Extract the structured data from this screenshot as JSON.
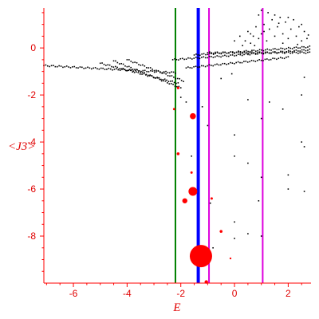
{
  "chart_data": {
    "type": "scatter",
    "title": "",
    "xlabel": "E",
    "ylabel": "<J3>",
    "xlim": [
      -7.1,
      2.85
    ],
    "ylim": [
      -10.0,
      1.7
    ],
    "xticks": [
      -6,
      -4,
      -2,
      0,
      2
    ],
    "yticks": [
      0,
      -2,
      -4,
      -6,
      -8
    ],
    "grid": false,
    "legend": "none",
    "colors": {
      "axis": "#ff0000",
      "tick_label": "#e00000",
      "points": "#000000",
      "highlight": "#ff0000",
      "line_green": "#008000",
      "line_blue": "#0000ff",
      "line_magenta": "#dd00dd"
    },
    "vertical_lines": [
      {
        "name": "green line",
        "x": -2.2,
        "color": "#008000",
        "width": 2
      },
      {
        "name": "blue line",
        "x": -1.35,
        "color": "#0000ff",
        "width": 4
      },
      {
        "name": "magenta line left",
        "x": -0.95,
        "color": "#dd00dd",
        "width": 2
      },
      {
        "name": "magenta line right",
        "x": 1.05,
        "color": "#dd00dd",
        "width": 2
      }
    ],
    "band_series": [
      {
        "x_start": -7.1,
        "x_end": -2.2,
        "y_start": -0.75,
        "y_end": -1.05
      },
      {
        "x_start": -5.0,
        "x_end": -2.1,
        "y_start": -0.65,
        "y_end": -1.5
      },
      {
        "x_start": -4.5,
        "x_end": -2.0,
        "y_start": -0.55,
        "y_end": -1.7
      },
      {
        "x_start": -4.0,
        "x_end": -1.9,
        "y_start": -0.5,
        "y_end": -1.4
      },
      {
        "x_start": -2.3,
        "x_end": 2.8,
        "y_start": -0.5,
        "y_end": -0.08
      },
      {
        "x_start": -1.5,
        "x_end": 2.8,
        "y_start": -0.3,
        "y_end": 0.05
      },
      {
        "x_start": -1.0,
        "x_end": 2.8,
        "y_start": -0.2,
        "y_end": -0.2
      },
      {
        "x_start": -1.8,
        "x_end": 2.0,
        "y_start": -0.85,
        "y_end": -0.4
      }
    ],
    "cluster_points": [
      [
        0.0,
        0.3
      ],
      [
        0.2,
        0.5
      ],
      [
        0.4,
        0.3
      ],
      [
        0.5,
        0.7
      ],
      [
        0.6,
        0.2
      ],
      [
        0.7,
        0.5
      ],
      [
        0.8,
        0.9
      ],
      [
        0.9,
        0.4
      ],
      [
        1.0,
        0.6
      ],
      [
        1.1,
        1.0
      ],
      [
        1.2,
        0.3
      ],
      [
        1.3,
        0.8
      ],
      [
        1.4,
        1.2
      ],
      [
        1.5,
        0.5
      ],
      [
        1.6,
        0.9
      ],
      [
        1.7,
        1.3
      ],
      [
        1.8,
        0.6
      ],
      [
        1.9,
        1.1
      ],
      [
        2.0,
        0.4
      ],
      [
        2.1,
        0.8
      ],
      [
        2.2,
        1.2
      ],
      [
        2.3,
        0.5
      ],
      [
        2.4,
        0.9
      ],
      [
        2.5,
        0.3
      ],
      [
        2.6,
        0.7
      ],
      [
        2.7,
        0.4
      ],
      [
        1.0,
        1.6
      ],
      [
        0.9,
        1.4
      ],
      [
        1.5,
        1.4
      ],
      [
        2.0,
        1.3
      ],
      [
        0.3,
        0.1
      ],
      [
        1.1,
        0.7
      ],
      [
        1.8,
        0.2
      ],
      [
        2.5,
        1.0
      ],
      [
        0.6,
        0.6
      ],
      [
        1.25,
        1.5
      ],
      [
        1.65,
        1.05
      ],
      [
        2.35,
        0.15
      ],
      [
        0.75,
        0.1
      ],
      [
        2.75,
        0.55
      ]
    ],
    "scatter_points": [
      [
        -2.0,
        -2.1
      ],
      [
        -1.8,
        -2.3
      ],
      [
        -1.2,
        -2.5
      ],
      [
        -0.1,
        -1.1
      ],
      [
        -0.5,
        -1.3
      ],
      [
        0.5,
        -2.2
      ],
      [
        1.3,
        -2.3
      ],
      [
        2.6,
        -1.25
      ],
      [
        -2.1,
        -4.5
      ],
      [
        -1.6,
        -4.6
      ],
      [
        -1.0,
        -3.3
      ],
      [
        0.0,
        -3.7
      ],
      [
        0.0,
        -4.6
      ],
      [
        0.5,
        -4.9
      ],
      [
        1.0,
        -5.5
      ],
      [
        1.0,
        -3.0
      ],
      [
        1.8,
        -2.6
      ],
      [
        2.6,
        -4.2
      ],
      [
        2.0,
        -5.4
      ],
      [
        2.0,
        -6.0
      ],
      [
        2.6,
        -6.1
      ],
      [
        2.5,
        -4.0
      ],
      [
        -0.9,
        -6.6
      ],
      [
        0.9,
        -6.5
      ],
      [
        0.0,
        -7.4
      ],
      [
        0.5,
        -7.9
      ],
      [
        0.0,
        -8.1
      ],
      [
        1.0,
        -8.0
      ],
      [
        -0.8,
        -8.5
      ],
      [
        2.5,
        -2.0
      ]
    ],
    "highlight_points": [
      {
        "x": -1.25,
        "y": -8.85,
        "size": 14
      },
      {
        "x": -1.55,
        "y": -6.1,
        "size": 5.5
      },
      {
        "x": -1.85,
        "y": -6.5,
        "size": 3.2
      },
      {
        "x": -1.55,
        "y": -2.9,
        "size": 3.8
      },
      {
        "x": -2.1,
        "y": -4.5,
        "size": 1.8
      },
      {
        "x": -1.6,
        "y": -5.3,
        "size": 1.5
      },
      {
        "x": -0.85,
        "y": -6.4,
        "size": 1.5
      },
      {
        "x": -0.5,
        "y": -7.8,
        "size": 1.8
      },
      {
        "x": -2.25,
        "y": -2.6,
        "size": 1.4
      },
      {
        "x": -2.1,
        "y": -1.7,
        "size": 1.6
      },
      {
        "x": -1.05,
        "y": -9.95,
        "size": 2.2
      },
      {
        "x": -0.15,
        "y": -8.95,
        "size": 1.2
      }
    ]
  }
}
